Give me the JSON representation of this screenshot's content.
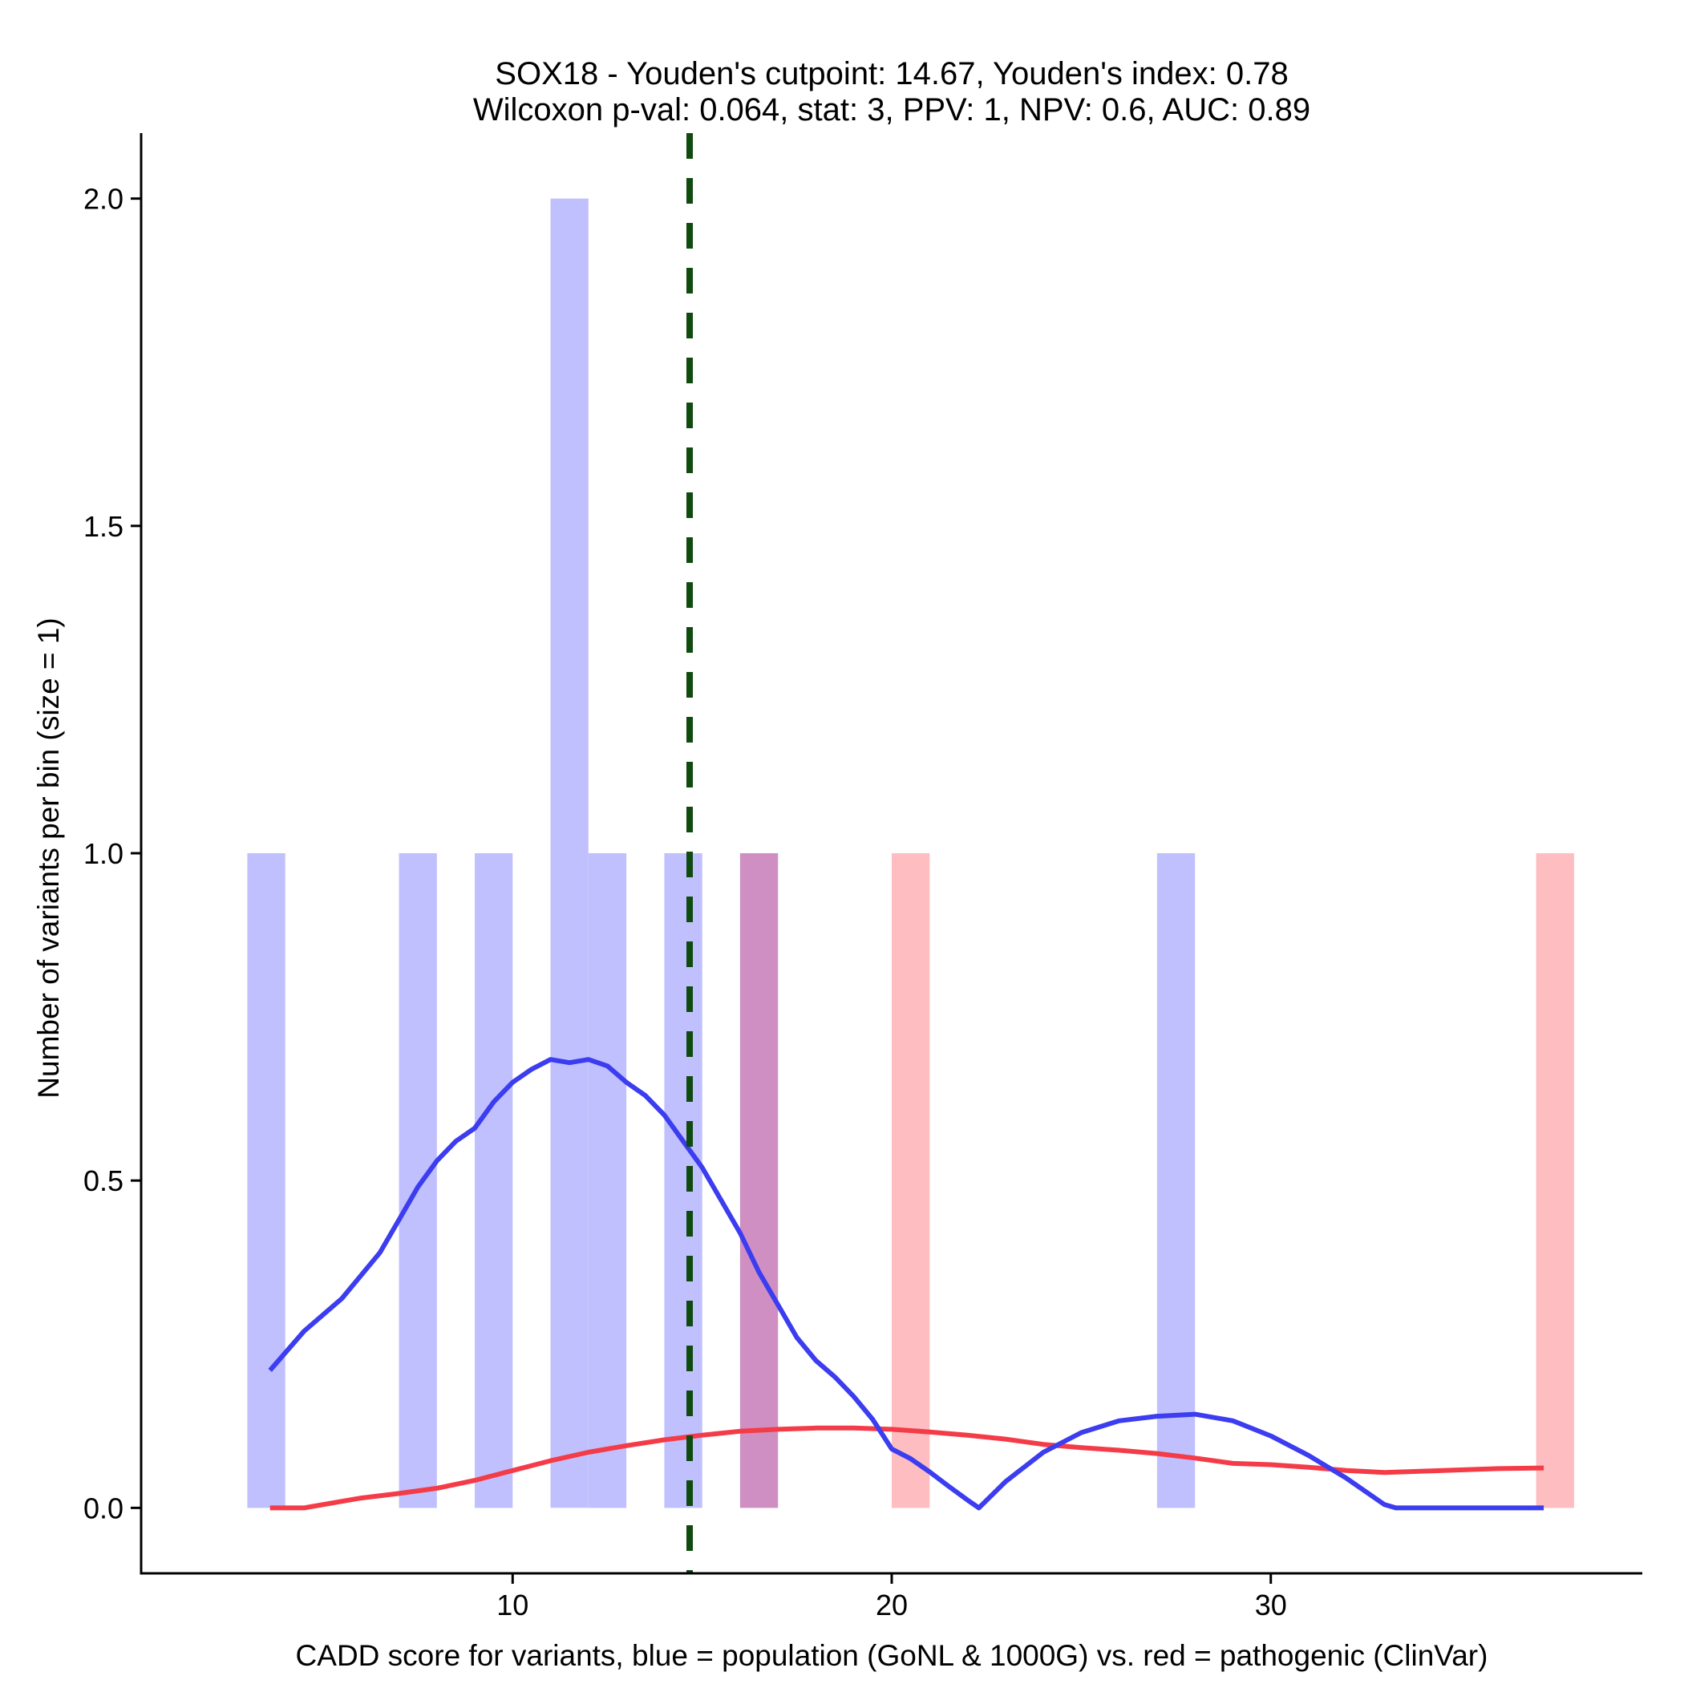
{
  "chart_data": {
    "type": "histogram",
    "title_line1": "SOX18 - Youden's cutpoint: 14.67, Youden's index: 0.78",
    "title_line2": "Wilcoxon p-val: 0.064, stat: 3, PPV: 1, NPV: 0.6, AUC: 0.89",
    "xlabel": "CADD score for variants, blue = population (GoNL & 1000G) vs. red = pathogenic (ClinVar)",
    "ylabel": "Number of variants per bin (size = 1)",
    "xlim": [
      0.2,
      39.8
    ],
    "ylim": [
      -0.1,
      2.1
    ],
    "x_ticks": [
      {
        "value": 10,
        "label": "10"
      },
      {
        "value": 20,
        "label": "20"
      },
      {
        "value": 30,
        "label": "30"
      }
    ],
    "y_ticks": [
      {
        "value": 0.0,
        "label": "0.0"
      },
      {
        "value": 0.5,
        "label": "0.5"
      },
      {
        "value": 1.0,
        "label": "1.0"
      },
      {
        "value": 1.5,
        "label": "1.5"
      },
      {
        "value": 2.0,
        "label": "2.0"
      }
    ],
    "bin_width": 1,
    "cutpoint": 14.67,
    "colors": {
      "population_bar": "#c0c0fe",
      "pathogenic_bar": "#fdbdc1",
      "overlap_bar": "#cf8fc2",
      "population_line": "#3c3cf0",
      "pathogenic_line": "#f43c48",
      "cutpoint_line": "#0f4a0f",
      "axis": "#000000"
    },
    "series": [
      {
        "name": "population (GoNL & 1000G)",
        "bins": [
          {
            "start": 3,
            "count": 1
          },
          {
            "start": 7,
            "count": 1
          },
          {
            "start": 9,
            "count": 1
          },
          {
            "start": 11,
            "count": 2
          },
          {
            "start": 12,
            "count": 1
          },
          {
            "start": 14,
            "count": 1
          },
          {
            "start": 16,
            "count": 1
          },
          {
            "start": 27,
            "count": 1
          }
        ],
        "density": [
          [
            3.6,
            0.21
          ],
          [
            4.5,
            0.27
          ],
          [
            5.5,
            0.32
          ],
          [
            6.5,
            0.39
          ],
          [
            7.0,
            0.44
          ],
          [
            7.5,
            0.49
          ],
          [
            8.0,
            0.53
          ],
          [
            8.5,
            0.56
          ],
          [
            9.0,
            0.58
          ],
          [
            9.5,
            0.62
          ],
          [
            10.0,
            0.65
          ],
          [
            10.5,
            0.67
          ],
          [
            11.0,
            0.685
          ],
          [
            11.5,
            0.68
          ],
          [
            12.0,
            0.685
          ],
          [
            12.5,
            0.675
          ],
          [
            13.0,
            0.65
          ],
          [
            13.5,
            0.63
          ],
          [
            14.0,
            0.6
          ],
          [
            14.5,
            0.56
          ],
          [
            15.0,
            0.52
          ],
          [
            15.5,
            0.47
          ],
          [
            16.0,
            0.42
          ],
          [
            16.5,
            0.36
          ],
          [
            17.0,
            0.31
          ],
          [
            17.5,
            0.26
          ],
          [
            18.0,
            0.225
          ],
          [
            18.5,
            0.2
          ],
          [
            19.0,
            0.17
          ],
          [
            19.5,
            0.135
          ],
          [
            20.0,
            0.09
          ],
          [
            20.5,
            0.075
          ],
          [
            21.0,
            0.055
          ],
          [
            21.5,
            0.033
          ],
          [
            22.0,
            0.012
          ],
          [
            22.3,
            0.0
          ],
          [
            23.0,
            0.04
          ],
          [
            24.0,
            0.085
          ],
          [
            25.0,
            0.115
          ],
          [
            26.0,
            0.133
          ],
          [
            27.0,
            0.14
          ],
          [
            28.0,
            0.143
          ],
          [
            29.0,
            0.133
          ],
          [
            30.0,
            0.11
          ],
          [
            31.0,
            0.08
          ],
          [
            32.0,
            0.045
          ],
          [
            33.0,
            0.005
          ],
          [
            33.3,
            0.0
          ],
          [
            34.0,
            0.0
          ],
          [
            37.2,
            0.0
          ]
        ]
      },
      {
        "name": "pathogenic (ClinVar)",
        "bins": [
          {
            "start": 16,
            "count": 1
          },
          {
            "start": 20,
            "count": 1
          },
          {
            "start": 37,
            "count": 1
          }
        ],
        "density": [
          [
            3.6,
            0.0
          ],
          [
            4.5,
            0.0
          ],
          [
            6.0,
            0.015
          ],
          [
            7.0,
            0.022
          ],
          [
            8.0,
            0.03
          ],
          [
            9.0,
            0.042
          ],
          [
            10.0,
            0.057
          ],
          [
            11.0,
            0.072
          ],
          [
            12.0,
            0.085
          ],
          [
            13.0,
            0.095
          ],
          [
            14.0,
            0.104
          ],
          [
            15.0,
            0.111
          ],
          [
            16.0,
            0.117
          ],
          [
            17.0,
            0.12
          ],
          [
            18.0,
            0.122
          ],
          [
            19.0,
            0.122
          ],
          [
            20.0,
            0.12
          ],
          [
            21.0,
            0.116
          ],
          [
            22.0,
            0.111
          ],
          [
            23.0,
            0.105
          ],
          [
            24.0,
            0.097
          ],
          [
            25.0,
            0.092
          ],
          [
            26.0,
            0.088
          ],
          [
            27.0,
            0.083
          ],
          [
            28.0,
            0.076
          ],
          [
            29.0,
            0.068
          ],
          [
            30.0,
            0.066
          ],
          [
            31.0,
            0.062
          ],
          [
            32.0,
            0.057
          ],
          [
            33.0,
            0.054
          ],
          [
            34.0,
            0.056
          ],
          [
            35.0,
            0.058
          ],
          [
            36.0,
            0.06
          ],
          [
            37.2,
            0.061
          ]
        ]
      }
    ]
  }
}
